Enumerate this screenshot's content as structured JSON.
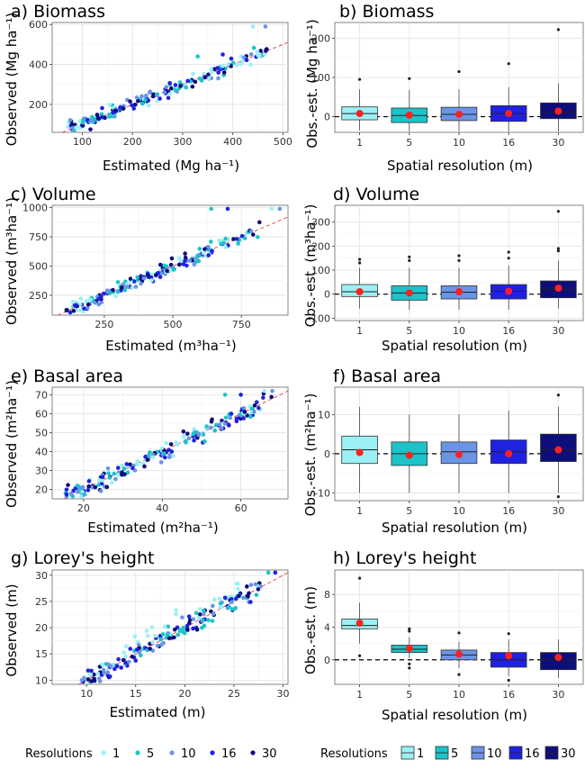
{
  "palette": {
    "1": "#9bf0f5",
    "5": "#1cc3c8",
    "10": "#6b94e6",
    "16": "#1f22e0",
    "30": "#0e0e7a",
    "mean": "#ff2020",
    "ref": "#e05050"
  },
  "chart_data": [
    {
      "id": "a",
      "type": "scatter",
      "title": "a) Biomass",
      "xlabel": "Estimated (Mg ha⁻¹)",
      "ylabel": "Observed (Mg ha⁻¹)",
      "xlim": [
        40,
        510
      ],
      "ylim": [
        60,
        610
      ],
      "xticks": [
        100,
        200,
        300,
        400,
        500
      ],
      "yticks": [
        200,
        400,
        600
      ],
      "cloud": {
        "x0": 70,
        "x1": 470,
        "spread": 28,
        "upper": [
          [
            330,
            440
          ],
          [
            380,
            450
          ],
          [
            440,
            590
          ],
          [
            465,
            590
          ]
        ]
      },
      "seed": 11
    },
    {
      "id": "b",
      "type": "boxplot",
      "title": "b) Biomass",
      "xlabel": "Spatial resolution (m)",
      "ylabel": "Obs.-est. (Mg ha⁻¹)",
      "categories": [
        "1",
        "5",
        "10",
        "16",
        "30"
      ],
      "ylim": [
        -40,
        240
      ],
      "yticks": [
        0,
        100,
        200
      ],
      "boxes": [
        {
          "q1": -8,
          "med": 8,
          "q3": 25,
          "lo": -35,
          "hi": 70,
          "mean": 8,
          "out": [
            95
          ]
        },
        {
          "q1": -15,
          "med": 3,
          "q3": 22,
          "lo": -38,
          "hi": 68,
          "mean": 4,
          "out": [
            97
          ]
        },
        {
          "q1": -10,
          "med": 6,
          "q3": 24,
          "lo": -38,
          "hi": 70,
          "mean": 6,
          "out": [
            115
          ]
        },
        {
          "q1": -12,
          "med": 8,
          "q3": 28,
          "lo": -38,
          "hi": 75,
          "mean": 8,
          "out": [
            135
          ]
        },
        {
          "q1": -5,
          "med": 12,
          "q3": 35,
          "lo": -38,
          "hi": 85,
          "mean": 14,
          "out": [
            222
          ]
        }
      ]
    },
    {
      "id": "c",
      "type": "scatter",
      "title": "c) Volume",
      "xlabel": "Estimated (m³ha⁻¹)",
      "ylabel": "Observed (m³ha⁻¹)",
      "xlim": [
        60,
        920
      ],
      "ylim": [
        80,
        1020
      ],
      "xticks": [
        250,
        500,
        750
      ],
      "yticks": [
        250,
        500,
        750,
        1000
      ],
      "cloud": {
        "x0": 110,
        "x1": 820,
        "spread": 45,
        "upper": [
          [
            640,
            990
          ],
          [
            700,
            990
          ],
          [
            860,
            990
          ],
          [
            890,
            990
          ]
        ]
      },
      "seed": 23
    },
    {
      "id": "d",
      "type": "boxplot",
      "title": "d) Volume",
      "xlabel": "Spatial resolution (m)",
      "ylabel": "Obs.-est. (m³ha⁻¹)",
      "categories": [
        "1",
        "5",
        "10",
        "16",
        "30"
      ],
      "ylim": [
        -110,
        370
      ],
      "yticks": [
        -100,
        0,
        100,
        200,
        300
      ],
      "boxes": [
        {
          "q1": -10,
          "med": 10,
          "q3": 40,
          "lo": -60,
          "hi": 110,
          "mean": 10,
          "out": [
            130,
            145
          ]
        },
        {
          "q1": -25,
          "med": 5,
          "q3": 35,
          "lo": -65,
          "hi": 110,
          "mean": 5,
          "out": [
            140,
            155
          ]
        },
        {
          "q1": -20,
          "med": 8,
          "q3": 35,
          "lo": -65,
          "hi": 110,
          "mean": 10,
          "out": [
            140,
            160
          ]
        },
        {
          "q1": -20,
          "med": 12,
          "q3": 40,
          "lo": -65,
          "hi": 120,
          "mean": 12,
          "out": [
            150,
            175
          ]
        },
        {
          "q1": -15,
          "med": 20,
          "q3": 55,
          "lo": -60,
          "hi": 140,
          "mean": 25,
          "out": [
            180,
            190,
            345
          ]
        }
      ]
    },
    {
      "id": "e",
      "type": "scatter",
      "title": "e) Basal area",
      "xlabel": "Estimated (m²ha⁻¹)",
      "ylabel": "Observed (m²ha⁻¹)",
      "xlim": [
        12,
        72
      ],
      "ylim": [
        15,
        74
      ],
      "xticks": [
        20,
        40,
        60
      ],
      "yticks": [
        20,
        30,
        40,
        50,
        60,
        70
      ],
      "cloud": {
        "x0": 15,
        "x1": 68,
        "spread": 3.5,
        "upper": [
          [
            56,
            70
          ],
          [
            60,
            70
          ],
          [
            66,
            72
          ],
          [
            68,
            72
          ]
        ]
      },
      "seed": 37
    },
    {
      "id": "f",
      "type": "boxplot",
      "title": "f) Basal area",
      "xlabel": "Spatial resolution (m)",
      "ylabel": "Obs.-est. (m²ha⁻¹)",
      "categories": [
        "1",
        "5",
        "10",
        "16",
        "30"
      ],
      "ylim": [
        -12,
        17
      ],
      "yticks": [
        -10,
        0,
        10
      ],
      "boxes": [
        {
          "q1": -2.5,
          "med": 1,
          "q3": 4.5,
          "lo": -10,
          "hi": 12,
          "mean": 0.3,
          "out": []
        },
        {
          "q1": -3,
          "med": 0,
          "q3": 3,
          "lo": -10,
          "hi": 10,
          "mean": -0.4,
          "out": []
        },
        {
          "q1": -2.5,
          "med": 0.5,
          "q3": 3,
          "lo": -10,
          "hi": 10,
          "mean": -0.2,
          "out": []
        },
        {
          "q1": -2.5,
          "med": 0.5,
          "q3": 3.5,
          "lo": -10,
          "hi": 11,
          "mean": 0,
          "out": []
        },
        {
          "q1": -2,
          "med": 1,
          "q3": 5,
          "lo": -10,
          "hi": 12,
          "mean": 1,
          "out": [
            -11,
            15
          ]
        }
      ]
    },
    {
      "id": "g",
      "type": "scatter",
      "title": "g) Lorey's height",
      "xlabel": "Estimated (m)",
      "ylabel": "Observed (m)",
      "xlim": [
        6.5,
        30.5
      ],
      "ylim": [
        9.2,
        31
      ],
      "xticks": [
        10,
        15,
        20,
        25,
        30
      ],
      "yticks": [
        10,
        15,
        20,
        25,
        30
      ],
      "cloud": {
        "x0": 9.5,
        "x1": 28,
        "spread": 1.4,
        "upper": [
          [
            28.5,
            30.5
          ],
          [
            29.2,
            30.5
          ]
        ]
      },
      "seed": 53
    },
    {
      "id": "h",
      "type": "boxplot",
      "title": "h) Lorey's height",
      "xlabel": "Spatial resolution (m)",
      "ylabel": "Obs.-est. (m)",
      "categories": [
        "1",
        "5",
        "10",
        "16",
        "30"
      ],
      "ylim": [
        -3,
        11
      ],
      "yticks": [
        0,
        4,
        8
      ],
      "boxes": [
        {
          "q1": 3.8,
          "med": 4.2,
          "q3": 5.0,
          "lo": 2.0,
          "hi": 7.0,
          "mean": 4.5,
          "out": [
            10,
            0.5
          ]
        },
        {
          "q1": 0.9,
          "med": 1.3,
          "q3": 1.8,
          "lo": 0.2,
          "hi": 2.8,
          "mean": 1.4,
          "out": [
            -1,
            -0.5,
            3.5,
            3.8
          ]
        },
        {
          "q1": 0,
          "med": 0.6,
          "q3": 1.2,
          "lo": -1.0,
          "hi": 2.2,
          "mean": 0.7,
          "out": [
            -1.8,
            3.3
          ]
        },
        {
          "q1": -0.9,
          "med": 0,
          "q3": 0.9,
          "lo": -2.0,
          "hi": 2.5,
          "mean": 0.5,
          "out": [
            -2.5,
            3.2
          ]
        },
        {
          "q1": -1.2,
          "med": 0,
          "q3": 0.9,
          "lo": -2.2,
          "hi": 2.5,
          "mean": 0.3,
          "out": []
        }
      ]
    }
  ],
  "legends": {
    "scatter": {
      "title": "Resolutions",
      "items": [
        "1",
        "5",
        "10",
        "16",
        "30"
      ]
    },
    "box": {
      "title": "Resolutions",
      "items": [
        "1",
        "5",
        "10",
        "16",
        "30"
      ]
    }
  }
}
